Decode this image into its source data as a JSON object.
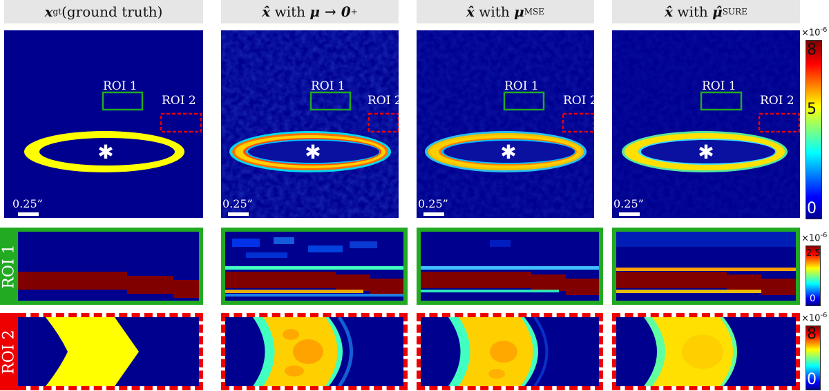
{
  "columns": [
    {
      "id": "gt",
      "title_main": "x",
      "title_sub": "gt",
      "title_rest": " (ground truth)"
    },
    {
      "id": "mu0",
      "title_main": "x̂",
      "title_rest": " with ",
      "title_mu": "μ → 0",
      "title_sup": "+"
    },
    {
      "id": "mse",
      "title_main": "x̂",
      "title_rest": " with ",
      "title_mu": "μ",
      "title_sup": "MSE"
    },
    {
      "id": "sure",
      "title_main": "x̂",
      "title_rest": " with ",
      "title_mu": "μ̂",
      "title_sup": "SURE"
    }
  ],
  "roi_labels": {
    "roi1": "ROI 1",
    "roi2": "ROI 2"
  },
  "scale_bar_label": "0.25”",
  "colorbars": {
    "main": {
      "exponent": "×10",
      "exponent_power": "-6",
      "ticks": [
        "8",
        "5",
        "0"
      ]
    },
    "roi1": {
      "exponent": "×10",
      "exponent_power": "-6",
      "ticks": [
        "2.5",
        "0"
      ]
    },
    "roi2": {
      "exponent": "×10",
      "exponent_power": "-6",
      "ticks": [
        "8",
        "0"
      ]
    }
  },
  "colors": {
    "background_blue": "#00008f",
    "ring_yellow": "#ffff00",
    "roi1_border": "#22aa22",
    "roi2_border": "#ee0000",
    "deep_red": "#800000"
  }
}
